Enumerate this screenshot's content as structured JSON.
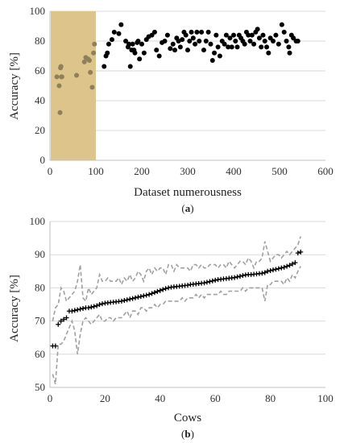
{
  "chart_data": [
    {
      "type": "scatter",
      "panel_label": {
        "open": "(",
        "letter": "a",
        "close": ")"
      },
      "xlabel": "Dataset numerousness",
      "ylabel": "Accuracy [%]",
      "xlim": [
        0,
        600
      ],
      "ylim": [
        0,
        100
      ],
      "xticks": [
        "0",
        "100",
        "200",
        "300",
        "400",
        "500",
        "600"
      ],
      "yticks": [
        "0",
        "20",
        "40",
        "60",
        "80",
        "100"
      ],
      "grid": "horizontal",
      "highlight_region": {
        "x": [
          0,
          100
        ],
        "color": "#dcc48a"
      },
      "colors": {
        "inside": "#8f7f5a",
        "outside": "#000000"
      },
      "points_inside": [
        [
          15,
          56
        ],
        [
          20,
          50
        ],
        [
          22,
          32
        ],
        [
          23,
          62
        ],
        [
          24,
          63
        ],
        [
          25,
          56
        ],
        [
          26,
          56
        ],
        [
          58,
          57
        ],
        [
          75,
          66
        ],
        [
          78,
          69
        ],
        [
          83,
          68
        ],
        [
          86,
          67
        ],
        [
          88,
          59
        ],
        [
          92,
          49
        ],
        [
          95,
          72
        ],
        [
          97,
          78
        ]
      ],
      "points_outside": [
        [
          118,
          63
        ],
        [
          122,
          70
        ],
        [
          125,
          72
        ],
        [
          128,
          78
        ],
        [
          135,
          81
        ],
        [
          140,
          86
        ],
        [
          150,
          85
        ],
        [
          155,
          91
        ],
        [
          165,
          80
        ],
        [
          170,
          76
        ],
        [
          172,
          78
        ],
        [
          175,
          63
        ],
        [
          178,
          74
        ],
        [
          180,
          78
        ],
        [
          183,
          74
        ],
        [
          185,
          72
        ],
        [
          190,
          79
        ],
        [
          192,
          80
        ],
        [
          195,
          68
        ],
        [
          200,
          78
        ],
        [
          205,
          72
        ],
        [
          210,
          81
        ],
        [
          215,
          83
        ],
        [
          222,
          84
        ],
        [
          228,
          86
        ],
        [
          232,
          74
        ],
        [
          238,
          70
        ],
        [
          244,
          79
        ],
        [
          250,
          80
        ],
        [
          256,
          84
        ],
        [
          262,
          75
        ],
        [
          268,
          78
        ],
        [
          272,
          74
        ],
        [
          276,
          82
        ],
        [
          280,
          80
        ],
        [
          284,
          76
        ],
        [
          288,
          81
        ],
        [
          292,
          86
        ],
        [
          296,
          84
        ],
        [
          300,
          74
        ],
        [
          304,
          80
        ],
        [
          308,
          86
        ],
        [
          312,
          82
        ],
        [
          316,
          78
        ],
        [
          320,
          86
        ],
        [
          325,
          80
        ],
        [
          330,
          86
        ],
        [
          335,
          74
        ],
        [
          340,
          80
        ],
        [
          345,
          86
        ],
        [
          350,
          78
        ],
        [
          354,
          67
        ],
        [
          358,
          72
        ],
        [
          362,
          84
        ],
        [
          366,
          76
        ],
        [
          370,
          70
        ],
        [
          375,
          80
        ],
        [
          380,
          78
        ],
        [
          384,
          84
        ],
        [
          388,
          76
        ],
        [
          392,
          82
        ],
        [
          396,
          76
        ],
        [
          400,
          84
        ],
        [
          404,
          80
        ],
        [
          408,
          76
        ],
        [
          412,
          84
        ],
        [
          416,
          82
        ],
        [
          420,
          80
        ],
        [
          424,
          78
        ],
        [
          428,
          86
        ],
        [
          432,
          84
        ],
        [
          436,
          80
        ],
        [
          440,
          84
        ],
        [
          444,
          78
        ],
        [
          448,
          86
        ],
        [
          452,
          88
        ],
        [
          456,
          82
        ],
        [
          460,
          76
        ],
        [
          464,
          84
        ],
        [
          468,
          80
        ],
        [
          472,
          76
        ],
        [
          476,
          72
        ],
        [
          480,
          82
        ],
        [
          486,
          80
        ],
        [
          492,
          84
        ],
        [
          498,
          78
        ],
        [
          505,
          91
        ],
        [
          510,
          86
        ],
        [
          515,
          80
        ],
        [
          520,
          76
        ],
        [
          522,
          72
        ],
        [
          526,
          84
        ],
        [
          530,
          82
        ],
        [
          536,
          80
        ],
        [
          540,
          80
        ]
      ]
    },
    {
      "type": "line",
      "panel_label": {
        "open": "(",
        "letter": "b",
        "close": ")"
      },
      "xlabel": "Cows",
      "ylabel": "Accuracy [%]",
      "xlim": [
        0,
        100
      ],
      "ylim": [
        50,
        100
      ],
      "xticks": [
        "0",
        "20",
        "40",
        "60",
        "80",
        "100"
      ],
      "yticks": [
        "50",
        "60",
        "70",
        "80",
        "90",
        "100"
      ],
      "grid": "horizontal",
      "colors": {
        "mean": "#000000",
        "bounds": "#a0a0a0"
      },
      "x": [
        1,
        2,
        3,
        4,
        5,
        6,
        7,
        8,
        9,
        10,
        11,
        12,
        13,
        14,
        15,
        16,
        17,
        18,
        19,
        20,
        21,
        22,
        23,
        24,
        25,
        26,
        27,
        28,
        29,
        30,
        31,
        32,
        33,
        34,
        35,
        36,
        37,
        38,
        39,
        40,
        41,
        42,
        43,
        44,
        45,
        46,
        47,
        48,
        49,
        50,
        51,
        52,
        53,
        54,
        55,
        56,
        57,
        58,
        59,
        60,
        61,
        62,
        63,
        64,
        65,
        66,
        67,
        68,
        69,
        70,
        71,
        72,
        73,
        74,
        75,
        76,
        77,
        78,
        79,
        80,
        81,
        82,
        83,
        84,
        85,
        86,
        87,
        88,
        89,
        90,
        91
      ],
      "series": [
        {
          "role": "mean",
          "values": [
            62.5,
            62.5,
            69.0,
            70.0,
            70.5,
            71.0,
            73.0,
            73.0,
            73.2,
            73.4,
            73.6,
            73.8,
            74.0,
            74.0,
            74.2,
            74.4,
            74.6,
            75.0,
            75.2,
            75.4,
            75.5,
            75.6,
            75.7,
            75.8,
            75.9,
            76.0,
            76.2,
            76.4,
            76.6,
            76.8,
            77.0,
            77.2,
            77.4,
            77.6,
            77.8,
            78.0,
            78.3,
            78.6,
            78.9,
            79.2,
            79.5,
            79.8,
            80.0,
            80.2,
            80.3,
            80.4,
            80.5,
            80.6,
            80.7,
            80.8,
            81.0,
            81.1,
            81.2,
            81.3,
            81.4,
            81.5,
            81.7,
            81.9,
            82.1,
            82.3,
            82.5,
            82.6,
            82.7,
            82.8,
            82.9,
            83.0,
            83.1,
            83.3,
            83.5,
            83.7,
            83.9,
            84.0,
            84.0,
            84.1,
            84.2,
            84.3,
            84.4,
            84.6,
            85.0,
            85.2,
            85.4,
            85.6,
            85.8,
            86.0,
            86.2,
            86.5,
            86.8,
            87.2,
            87.6,
            90.5,
            90.8
          ]
        },
        {
          "role": "upper",
          "values": [
            70.0,
            74.0,
            75.0,
            80.0,
            79.0,
            76.0,
            77.0,
            78.0,
            79.0,
            82.0,
            87.0,
            77.0,
            76.0,
            80.0,
            78.0,
            79.0,
            80.0,
            84.0,
            82.0,
            82.0,
            83.0,
            82.0,
            82.0,
            82.0,
            83.0,
            81.0,
            83.0,
            82.0,
            84.0,
            82.0,
            83.0,
            85.0,
            84.0,
            82.0,
            85.0,
            86.0,
            84.0,
            86.0,
            85.0,
            86.0,
            86.0,
            84.0,
            87.0,
            87.0,
            85.0,
            87.0,
            86.0,
            86.0,
            86.0,
            86.0,
            85.0,
            87.0,
            87.0,
            86.0,
            87.0,
            86.0,
            86.0,
            87.0,
            87.0,
            87.0,
            86.0,
            87.0,
            87.0,
            86.0,
            88.0,
            87.0,
            86.0,
            87.0,
            88.0,
            88.0,
            87.0,
            89.0,
            88.0,
            86.0,
            88.0,
            88.0,
            89.0,
            94.0,
            91.0,
            88.0,
            89.0,
            90.0,
            90.0,
            89.0,
            90.0,
            91.0,
            90.0,
            91.0,
            92.0,
            93.0,
            95.5
          ]
        },
        {
          "role": "lower",
          "values": [
            54.0,
            51.0,
            63.0,
            63.0,
            64.0,
            66.0,
            68.0,
            70.0,
            67.0,
            60.0,
            66.0,
            70.0,
            71.0,
            70.0,
            69.0,
            70.0,
            71.0,
            72.0,
            70.0,
            70.0,
            71.0,
            71.0,
            70.0,
            71.0,
            71.0,
            71.0,
            72.0,
            73.0,
            71.0,
            73.0,
            73.0,
            72.0,
            74.0,
            74.0,
            73.0,
            74.0,
            74.0,
            75.0,
            74.0,
            75.0,
            75.0,
            76.0,
            76.0,
            76.0,
            76.0,
            76.0,
            76.0,
            77.0,
            76.0,
            77.0,
            77.0,
            77.0,
            78.0,
            77.0,
            78.0,
            77.0,
            78.0,
            78.0,
            78.0,
            78.0,
            78.0,
            79.0,
            78.0,
            78.0,
            79.0,
            79.0,
            79.0,
            79.0,
            79.0,
            80.0,
            79.0,
            80.0,
            80.0,
            80.0,
            80.0,
            80.0,
            80.0,
            76.0,
            81.0,
            81.0,
            82.0,
            82.0,
            82.0,
            82.0,
            81.0,
            83.0,
            82.0,
            84.0,
            83.0,
            85.0,
            86.5
          ]
        }
      ]
    }
  ]
}
